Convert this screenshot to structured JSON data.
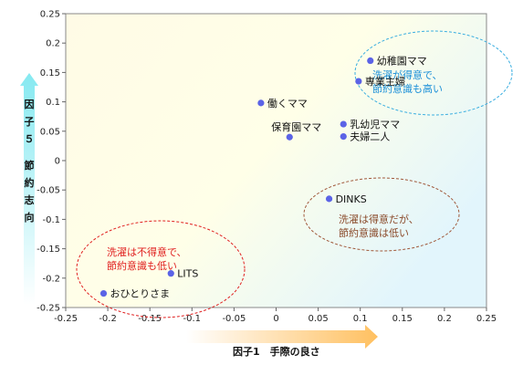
{
  "chart_data": {
    "type": "scatter",
    "xlabel": "因子1　手際の良さ",
    "ylabel": "因子５　節約志向",
    "xlim": [
      -0.25,
      0.25
    ],
    "ylim": [
      -0.25,
      0.25
    ],
    "x_ticks": [
      "-0.25",
      "-0.2",
      "-0.15",
      "-0.1",
      "-0.05",
      "0",
      "0.05",
      "0.1",
      "0.15",
      "0.2",
      "0.25"
    ],
    "y_ticks": [
      "0.25",
      "0.2",
      "0.15",
      "0.1",
      "0.05",
      "0",
      "-0.05",
      "-0.1",
      "-0.15",
      "-0.2",
      "-0.25"
    ],
    "points": [
      {
        "label": "幼稚園ママ",
        "x": 0.112,
        "y": 0.17
      },
      {
        "label": "専業主婦",
        "x": 0.098,
        "y": 0.135
      },
      {
        "label": "働くママ",
        "x": -0.018,
        "y": 0.098
      },
      {
        "label": "乳幼児ママ",
        "x": 0.08,
        "y": 0.062
      },
      {
        "label": "保育園ママ",
        "x": 0.016,
        "y": 0.04
      },
      {
        "label": "夫婦二人",
        "x": 0.08,
        "y": 0.041
      },
      {
        "label": "DINKS",
        "x": 0.063,
        "y": -0.065
      },
      {
        "label": "LITS",
        "x": -0.125,
        "y": -0.192
      },
      {
        "label": "おひとりさま",
        "x": -0.205,
        "y": -0.226
      }
    ],
    "point_color": "#5b63e6",
    "annotations": [
      {
        "lines": [
          "洗濯が得意で、",
          "節約意識も高い"
        ],
        "color": "#1a8fd8"
      },
      {
        "lines": [
          "洗濯は得意だが、",
          "節約意識は低い"
        ],
        "color": "#8a4a2a"
      },
      {
        "lines": [
          "洗濯は不得意で、",
          "節約意識も低い"
        ],
        "color": "#e02020"
      }
    ]
  }
}
